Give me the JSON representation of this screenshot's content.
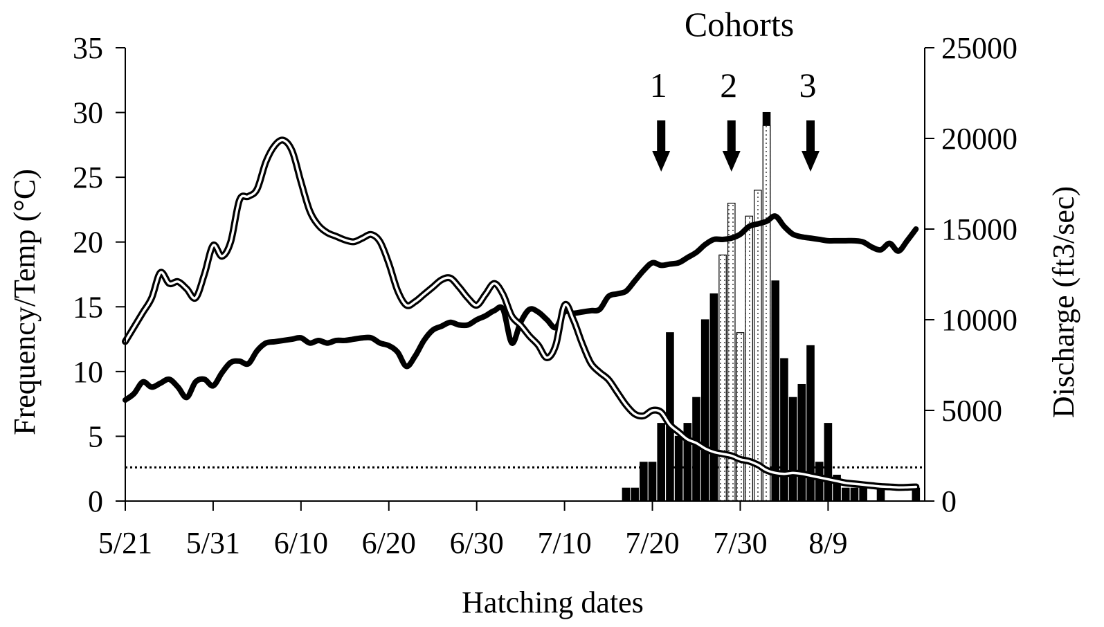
{
  "chart_data": {
    "type": "bar",
    "title": "",
    "xlabel": "Hatching dates",
    "ylabel": "Frequency/Temp (°C)",
    "y2label": "Discharge (ft3/sec)",
    "x_axis": {
      "start_date": "5/21",
      "end_date": "8/20",
      "tick_labels": [
        "5/21",
        "5/31",
        "6/10",
        "6/20",
        "6/30",
        "7/10",
        "7/20",
        "7/30",
        "8/9"
      ]
    },
    "ylim": [
      0,
      35
    ],
    "y_ticks": [
      0,
      5,
      10,
      15,
      20,
      25,
      30,
      35
    ],
    "y2lim": [
      0,
      25000
    ],
    "y2_ticks": [
      0,
      5000,
      10000,
      15000,
      20000,
      25000
    ],
    "grid": false,
    "legend": "none",
    "annotations": {
      "header": "Cohorts",
      "cohorts": [
        {
          "label": "1",
          "date": "7/21"
        },
        {
          "label": "2",
          "date": "7/29"
        },
        {
          "label": "3",
          "date": "8/7"
        }
      ]
    },
    "series": [
      {
        "type": "bar",
        "axis": "left",
        "pattern": "solid",
        "values": [
          {
            "date": "7/17",
            "value": 1
          },
          {
            "date": "7/18",
            "value": 1
          },
          {
            "date": "7/19",
            "value": 3
          },
          {
            "date": "7/20",
            "value": 3
          },
          {
            "date": "7/21",
            "value": 6
          },
          {
            "date": "7/22",
            "value": 13
          },
          {
            "date": "7/23",
            "value": 5
          },
          {
            "date": "7/24",
            "value": 6
          },
          {
            "date": "7/25",
            "value": 8
          },
          {
            "date": "7/26",
            "value": 14
          },
          {
            "date": "7/27",
            "value": 16
          },
          {
            "date": "8/2",
            "value": 30
          },
          {
            "date": "8/3",
            "value": 17
          },
          {
            "date": "8/4",
            "value": 11
          },
          {
            "date": "8/5",
            "value": 8
          },
          {
            "date": "8/6",
            "value": 9
          },
          {
            "date": "8/7",
            "value": 12
          },
          {
            "date": "8/8",
            "value": 3
          },
          {
            "date": "8/9",
            "value": 6
          },
          {
            "date": "8/10",
            "value": 2
          },
          {
            "date": "8/11",
            "value": 1
          },
          {
            "date": "8/12",
            "value": 1
          },
          {
            "date": "8/13",
            "value": 1
          },
          {
            "date": "8/15",
            "value": 1
          },
          {
            "date": "8/19",
            "value": 1
          }
        ]
      },
      {
        "type": "bar",
        "axis": "left",
        "pattern": "dotted",
        "values": [
          {
            "date": "7/28",
            "value": 19
          },
          {
            "date": "7/29",
            "value": 23
          },
          {
            "date": "7/30",
            "value": 13
          },
          {
            "date": "7/31",
            "value": 22
          },
          {
            "date": "8/1",
            "value": 24
          },
          {
            "date": "8/2",
            "value": 29
          }
        ]
      },
      {
        "type": "line",
        "axis": "left",
        "style": "thick-solid",
        "values": [
          {
            "date": "5/21",
            "value": 7.8
          },
          {
            "date": "5/22",
            "value": 8.3
          },
          {
            "date": "5/23",
            "value": 9.2
          },
          {
            "date": "5/24",
            "value": 8.8
          },
          {
            "date": "5/25",
            "value": 9.1
          },
          {
            "date": "5/26",
            "value": 9.4
          },
          {
            "date": "5/27",
            "value": 8.8
          },
          {
            "date": "5/28",
            "value": 8.0
          },
          {
            "date": "5/29",
            "value": 9.2
          },
          {
            "date": "5/30",
            "value": 9.4
          },
          {
            "date": "5/31",
            "value": 8.9
          },
          {
            "date": "6/1",
            "value": 9.9
          },
          {
            "date": "6/2",
            "value": 10.7
          },
          {
            "date": "6/3",
            "value": 10.8
          },
          {
            "date": "6/4",
            "value": 10.6
          },
          {
            "date": "6/5",
            "value": 11.6
          },
          {
            "date": "6/6",
            "value": 12.2
          },
          {
            "date": "6/7",
            "value": 12.3
          },
          {
            "date": "6/8",
            "value": 12.4
          },
          {
            "date": "6/9",
            "value": 12.5
          },
          {
            "date": "6/10",
            "value": 12.6
          },
          {
            "date": "6/11",
            "value": 12.2
          },
          {
            "date": "6/12",
            "value": 12.4
          },
          {
            "date": "6/13",
            "value": 12.2
          },
          {
            "date": "6/14",
            "value": 12.4
          },
          {
            "date": "6/15",
            "value": 12.4
          },
          {
            "date": "6/16",
            "value": 12.5
          },
          {
            "date": "6/17",
            "value": 12.6
          },
          {
            "date": "6/18",
            "value": 12.6
          },
          {
            "date": "6/19",
            "value": 12.2
          },
          {
            "date": "6/20",
            "value": 12.0
          },
          {
            "date": "6/21",
            "value": 11.5
          },
          {
            "date": "6/22",
            "value": 10.4
          },
          {
            "date": "6/23",
            "value": 11.2
          },
          {
            "date": "6/24",
            "value": 12.4
          },
          {
            "date": "6/25",
            "value": 13.2
          },
          {
            "date": "6/26",
            "value": 13.5
          },
          {
            "date": "6/27",
            "value": 13.8
          },
          {
            "date": "6/28",
            "value": 13.6
          },
          {
            "date": "6/29",
            "value": 13.6
          },
          {
            "date": "6/30",
            "value": 14.0
          },
          {
            "date": "7/1",
            "value": 14.3
          },
          {
            "date": "7/2",
            "value": 14.7
          },
          {
            "date": "7/3",
            "value": 14.8
          },
          {
            "date": "7/4",
            "value": 12.2
          },
          {
            "date": "7/5",
            "value": 13.8
          },
          {
            "date": "7/6",
            "value": 14.8
          },
          {
            "date": "7/7",
            "value": 14.6
          },
          {
            "date": "7/8",
            "value": 14.0
          },
          {
            "date": "7/9",
            "value": 13.4
          },
          {
            "date": "7/10",
            "value": 14.6
          },
          {
            "date": "7/11",
            "value": 14.5
          },
          {
            "date": "7/12",
            "value": 14.6
          },
          {
            "date": "7/13",
            "value": 14.7
          },
          {
            "date": "7/14",
            "value": 14.8
          },
          {
            "date": "7/15",
            "value": 15.8
          },
          {
            "date": "7/16",
            "value": 16.0
          },
          {
            "date": "7/17",
            "value": 16.2
          },
          {
            "date": "7/18",
            "value": 17.0
          },
          {
            "date": "7/19",
            "value": 17.8
          },
          {
            "date": "7/20",
            "value": 18.4
          },
          {
            "date": "7/21",
            "value": 18.2
          },
          {
            "date": "7/22",
            "value": 18.3
          },
          {
            "date": "7/23",
            "value": 18.4
          },
          {
            "date": "7/24",
            "value": 18.8
          },
          {
            "date": "7/25",
            "value": 19.2
          },
          {
            "date": "7/26",
            "value": 19.8
          },
          {
            "date": "7/27",
            "value": 20.2
          },
          {
            "date": "7/28",
            "value": 20.2
          },
          {
            "date": "7/29",
            "value": 20.3
          },
          {
            "date": "7/30",
            "value": 20.6
          },
          {
            "date": "7/31",
            "value": 21.2
          },
          {
            "date": "8/1",
            "value": 21.4
          },
          {
            "date": "8/2",
            "value": 21.6
          },
          {
            "date": "8/3",
            "value": 22.0
          },
          {
            "date": "8/4",
            "value": 21.2
          },
          {
            "date": "8/5",
            "value": 20.6
          },
          {
            "date": "8/6",
            "value": 20.4
          },
          {
            "date": "8/7",
            "value": 20.3
          },
          {
            "date": "8/8",
            "value": 20.2
          },
          {
            "date": "8/9",
            "value": 20.1
          },
          {
            "date": "8/10",
            "value": 20.1
          },
          {
            "date": "8/11",
            "value": 20.1
          },
          {
            "date": "8/12",
            "value": 20.1
          },
          {
            "date": "8/13",
            "value": 20.0
          },
          {
            "date": "8/14",
            "value": 19.6
          },
          {
            "date": "8/15",
            "value": 19.4
          },
          {
            "date": "8/16",
            "value": 19.9
          },
          {
            "date": "8/17",
            "value": 19.3
          },
          {
            "date": "8/18",
            "value": 20.1
          },
          {
            "date": "8/19",
            "value": 21.0
          }
        ]
      },
      {
        "type": "line",
        "axis": "right",
        "style": "double-line",
        "values": [
          {
            "date": "5/21",
            "value": 8800
          },
          {
            "date": "5/22",
            "value": 9600
          },
          {
            "date": "5/23",
            "value": 10400
          },
          {
            "date": "5/24",
            "value": 11200
          },
          {
            "date": "5/25",
            "value": 12600
          },
          {
            "date": "5/26",
            "value": 12000
          },
          {
            "date": "5/27",
            "value": 12100
          },
          {
            "date": "5/28",
            "value": 11700
          },
          {
            "date": "5/29",
            "value": 11200
          },
          {
            "date": "5/30",
            "value": 12500
          },
          {
            "date": "5/31",
            "value": 14100
          },
          {
            "date": "6/1",
            "value": 13500
          },
          {
            "date": "6/2",
            "value": 14300
          },
          {
            "date": "6/3",
            "value": 16600
          },
          {
            "date": "6/4",
            "value": 16800
          },
          {
            "date": "6/5",
            "value": 17200
          },
          {
            "date": "6/6",
            "value": 18700
          },
          {
            "date": "6/7",
            "value": 19600
          },
          {
            "date": "6/8",
            "value": 19900
          },
          {
            "date": "6/9",
            "value": 19300
          },
          {
            "date": "6/10",
            "value": 17600
          },
          {
            "date": "6/11",
            "value": 16000
          },
          {
            "date": "6/12",
            "value": 15200
          },
          {
            "date": "6/13",
            "value": 14800
          },
          {
            "date": "6/14",
            "value": 14600
          },
          {
            "date": "6/15",
            "value": 14400
          },
          {
            "date": "6/16",
            "value": 14300
          },
          {
            "date": "6/17",
            "value": 14500
          },
          {
            "date": "6/18",
            "value": 14700
          },
          {
            "date": "6/19",
            "value": 14300
          },
          {
            "date": "6/20",
            "value": 13100
          },
          {
            "date": "6/21",
            "value": 11600
          },
          {
            "date": "6/22",
            "value": 10800
          },
          {
            "date": "6/23",
            "value": 11000
          },
          {
            "date": "6/24",
            "value": 11400
          },
          {
            "date": "6/25",
            "value": 11800
          },
          {
            "date": "6/26",
            "value": 12200
          },
          {
            "date": "6/27",
            "value": 12300
          },
          {
            "date": "6/28",
            "value": 11800
          },
          {
            "date": "6/29",
            "value": 11200
          },
          {
            "date": "6/30",
            "value": 10800
          },
          {
            "date": "7/1",
            "value": 11400
          },
          {
            "date": "7/2",
            "value": 12000
          },
          {
            "date": "7/3",
            "value": 11400
          },
          {
            "date": "7/4",
            "value": 10200
          },
          {
            "date": "7/5",
            "value": 9700
          },
          {
            "date": "7/6",
            "value": 9100
          },
          {
            "date": "7/7",
            "value": 8600
          },
          {
            "date": "7/8",
            "value": 7900
          },
          {
            "date": "7/9",
            "value": 8600
          },
          {
            "date": "7/10",
            "value": 10800
          },
          {
            "date": "7/11",
            "value": 10000
          },
          {
            "date": "7/12",
            "value": 8700
          },
          {
            "date": "7/13",
            "value": 7600
          },
          {
            "date": "7/14",
            "value": 7100
          },
          {
            "date": "7/15",
            "value": 6700
          },
          {
            "date": "7/16",
            "value": 6000
          },
          {
            "date": "7/17",
            "value": 5300
          },
          {
            "date": "7/18",
            "value": 4800
          },
          {
            "date": "7/19",
            "value": 4700
          },
          {
            "date": "7/20",
            "value": 5000
          },
          {
            "date": "7/21",
            "value": 4900
          },
          {
            "date": "7/22",
            "value": 4200
          },
          {
            "date": "7/23",
            "value": 3800
          },
          {
            "date": "7/24",
            "value": 3400
          },
          {
            "date": "7/25",
            "value": 3200
          },
          {
            "date": "7/26",
            "value": 2900
          },
          {
            "date": "7/27",
            "value": 2700
          },
          {
            "date": "7/28",
            "value": 2600
          },
          {
            "date": "7/29",
            "value": 2500
          },
          {
            "date": "7/30",
            "value": 2300
          },
          {
            "date": "7/31",
            "value": 2200
          },
          {
            "date": "8/1",
            "value": 2000
          },
          {
            "date": "8/2",
            "value": 1700
          },
          {
            "date": "8/3",
            "value": 1550
          },
          {
            "date": "8/4",
            "value": 1500
          },
          {
            "date": "8/5",
            "value": 1550
          },
          {
            "date": "8/6",
            "value": 1500
          },
          {
            "date": "8/7",
            "value": 1400
          },
          {
            "date": "8/8",
            "value": 1300
          },
          {
            "date": "8/9",
            "value": 1200
          },
          {
            "date": "8/10",
            "value": 1100
          },
          {
            "date": "8/11",
            "value": 1000
          },
          {
            "date": "8/12",
            "value": 950
          },
          {
            "date": "8/13",
            "value": 900
          },
          {
            "date": "8/14",
            "value": 850
          },
          {
            "date": "8/15",
            "value": 800
          },
          {
            "date": "8/16",
            "value": 780
          },
          {
            "date": "8/17",
            "value": 750
          },
          {
            "date": "8/18",
            "value": 760
          },
          {
            "date": "8/19",
            "value": 780
          }
        ]
      },
      {
        "type": "reference-line",
        "axis": "left",
        "style": "dotted",
        "value": 2.6
      }
    ]
  }
}
